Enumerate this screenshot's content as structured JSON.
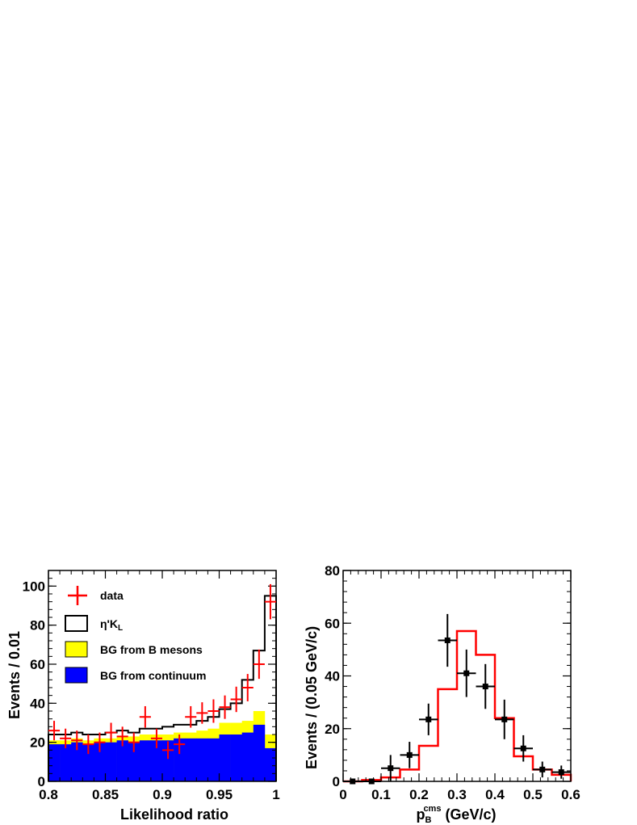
{
  "chart_data": [
    {
      "type": "histogram",
      "xlabel": "Likelihood ratio",
      "ylabel": "Events / 0.01",
      "xlim": [
        0.8,
        1.0
      ],
      "ylim": [
        0,
        108
      ],
      "xticks": [
        "0.8",
        "0.85",
        "0.9",
        "0.95",
        "1"
      ],
      "yticks": [
        "0",
        "20",
        "40",
        "60",
        "80",
        "100"
      ],
      "bin_edges": [
        0.8,
        0.81,
        0.82,
        0.83,
        0.84,
        0.85,
        0.86,
        0.87,
        0.88,
        0.89,
        0.9,
        0.91,
        0.92,
        0.93,
        0.94,
        0.95,
        0.96,
        0.97,
        0.98,
        0.99,
        1.0
      ],
      "legend": {
        "data": "data",
        "signal": "η'K",
        "signal_sub": "L",
        "bg_b": "BG from B mesons",
        "bg_cont": "BG from continuum"
      },
      "colors": {
        "data": "#ff0000",
        "signal": "#000000",
        "bg_b": "#ffff00",
        "bg_cont": "#0000ff"
      },
      "series": [
        {
          "key": "bg_cont",
          "values": [
            19,
            19,
            20,
            19,
            20,
            20,
            21,
            20,
            21,
            21,
            21,
            22,
            22,
            22,
            22,
            24,
            24,
            25,
            29,
            17
          ]
        },
        {
          "key": "bg_b_top",
          "values": [
            21,
            21,
            22,
            21,
            22,
            22,
            23,
            23,
            24,
            24,
            24,
            25,
            25,
            26,
            27,
            30,
            30,
            31,
            36,
            24
          ]
        },
        {
          "key": "signal_total",
          "values": [
            24,
            24,
            25,
            24,
            24,
            25,
            26,
            25,
            27,
            27,
            28,
            29,
            29,
            31,
            33,
            37,
            40,
            52,
            67,
            95
          ]
        },
        {
          "key": "data",
          "x": [
            0.805,
            0.815,
            0.825,
            0.835,
            0.845,
            0.855,
            0.865,
            0.875,
            0.885,
            0.895,
            0.905,
            0.915,
            0.925,
            0.935,
            0.945,
            0.955,
            0.965,
            0.975,
            0.985,
            0.995
          ],
          "values": [
            26,
            22,
            21,
            19,
            20,
            25,
            23,
            20,
            33,
            22,
            16,
            19,
            33,
            35,
            36,
            38,
            42,
            48,
            60,
            92
          ],
          "errors": [
            5,
            5,
            5,
            5,
            5,
            5,
            5,
            5,
            5.5,
            5,
            4.5,
            5,
            5.5,
            5.5,
            6,
            6,
            6.5,
            7,
            7.5,
            9
          ]
        }
      ]
    },
    {
      "type": "histogram",
      "xlabel": "p",
      "xlabel_sub": "B",
      "xlabel_sup": "cms",
      "xlabel_suffix": " (GeV/c)",
      "ylabel": "Events / (0.05 GeV/c)",
      "xlim": [
        0,
        0.6
      ],
      "ylim": [
        0,
        80
      ],
      "xticks": [
        "0",
        "0.1",
        "0.2",
        "0.3",
        "0.4",
        "0.5",
        "0.6"
      ],
      "yticks": [
        "0",
        "20",
        "40",
        "60",
        "80"
      ],
      "bin_edges": [
        0,
        0.05,
        0.1,
        0.15,
        0.2,
        0.25,
        0.3,
        0.35,
        0.4,
        0.45,
        0.5,
        0.55,
        0.6
      ],
      "colors": {
        "mc": "#ff0000",
        "data": "#000000"
      },
      "series": [
        {
          "key": "mc",
          "values": [
            0,
            0.5,
            1.5,
            4.5,
            13.5,
            35,
            57,
            48,
            24,
            9.5,
            4.5,
            2.5
          ]
        },
        {
          "key": "data",
          "x": [
            0.025,
            0.075,
            0.125,
            0.175,
            0.225,
            0.275,
            0.325,
            0.375,
            0.425,
            0.475,
            0.525,
            0.575
          ],
          "values": [
            0,
            0,
            5,
            10,
            23.5,
            53.5,
            41,
            36,
            23.5,
            12.5,
            4.5,
            3.5
          ],
          "errors": [
            0.5,
            1,
            5,
            5,
            6,
            10,
            9,
            8.5,
            7.5,
            5,
            3,
            2.5
          ]
        }
      ]
    }
  ]
}
